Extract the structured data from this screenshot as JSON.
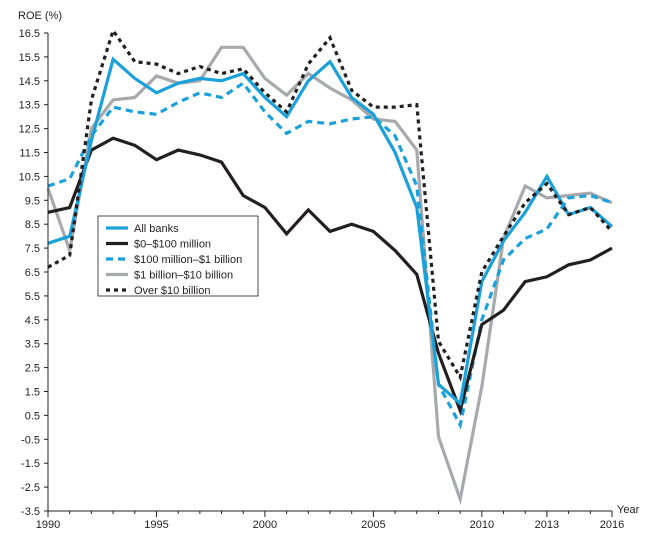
{
  "chart_data": {
    "type": "line",
    "ylabel": "ROE (%)",
    "xlabel": "Year",
    "xlim": [
      1990,
      2016
    ],
    "ylim": [
      -3.5,
      16.5
    ],
    "x_ticks": [
      1990,
      1995,
      2000,
      2005,
      2010,
      2013,
      2016
    ],
    "y_ticks": [
      "16.5",
      "15.5",
      "14.5",
      "13.5",
      "12.5",
      "11.5",
      "10.5",
      "9.5",
      "8.5",
      "7.5",
      "6.5",
      "5.5",
      "4.5",
      "3.5",
      "2.5",
      "1.5",
      "0.5",
      "-0.5",
      "-1.5",
      "-2.5",
      "-3.5"
    ],
    "grid": false,
    "legend_position": "left-middle",
    "x": [
      1990,
      1991,
      1992,
      1993,
      1994,
      1995,
      1996,
      1997,
      1998,
      1999,
      2000,
      2001,
      2002,
      2003,
      2004,
      2005,
      2006,
      2007,
      2008,
      2009,
      2010,
      2011,
      2012,
      2013,
      2014,
      2015,
      2016
    ],
    "series": [
      {
        "name": "All banks",
        "color": "#1ba1d9",
        "style": "solid",
        "values": [
          7.7,
          8.0,
          12.0,
          15.4,
          14.6,
          14.0,
          14.4,
          14.6,
          14.5,
          14.8,
          13.8,
          13.0,
          14.5,
          15.3,
          13.8,
          13.1,
          11.5,
          9.2,
          1.8,
          1.0,
          6.1,
          7.8,
          9.0,
          10.5,
          8.9,
          9.2,
          8.4
        ]
      },
      {
        "name": "$0–$100 million",
        "color": "#231f20",
        "style": "solid",
        "values": [
          9.0,
          9.2,
          11.6,
          12.1,
          11.8,
          11.2,
          11.6,
          11.4,
          11.1,
          9.7,
          9.2,
          8.1,
          9.1,
          8.2,
          8.5,
          8.2,
          7.4,
          6.4,
          3.1,
          0.7,
          4.3,
          4.9,
          6.1,
          6.3,
          6.8,
          7.0,
          7.5
        ]
      },
      {
        "name": "$100 million–$1 billion",
        "color": "#1ba1d9",
        "style": "dashed",
        "values": [
          10.1,
          10.4,
          12.2,
          13.4,
          13.2,
          13.1,
          13.6,
          14.0,
          13.8,
          14.4,
          13.2,
          12.3,
          12.8,
          12.7,
          12.9,
          13.0,
          12.2,
          10.1,
          1.8,
          0.1,
          4.5,
          7.0,
          7.9,
          8.3,
          9.6,
          9.7,
          9.4
        ]
      },
      {
        "name": "$1 billion–$10 billion",
        "color": "#a7a9ac",
        "style": "solid",
        "values": [
          10.0,
          7.4,
          12.5,
          13.7,
          13.8,
          14.7,
          14.4,
          14.5,
          15.9,
          15.9,
          14.6,
          13.9,
          14.8,
          14.2,
          13.7,
          12.9,
          12.8,
          11.6,
          -0.4,
          -3.0,
          1.7,
          7.9,
          10.1,
          9.6,
          9.7,
          9.8,
          9.4
        ]
      },
      {
        "name": "Over $10 billion",
        "color": "#231f20",
        "style": "dotted",
        "values": [
          6.7,
          7.2,
          13.7,
          16.6,
          15.3,
          15.2,
          14.8,
          15.1,
          14.8,
          15.0,
          14.0,
          13.2,
          15.2,
          16.3,
          14.1,
          13.4,
          13.4,
          13.5,
          3.6,
          2.1,
          6.5,
          8.0,
          9.4,
          10.2,
          8.9,
          9.2,
          8.2
        ]
      }
    ]
  }
}
